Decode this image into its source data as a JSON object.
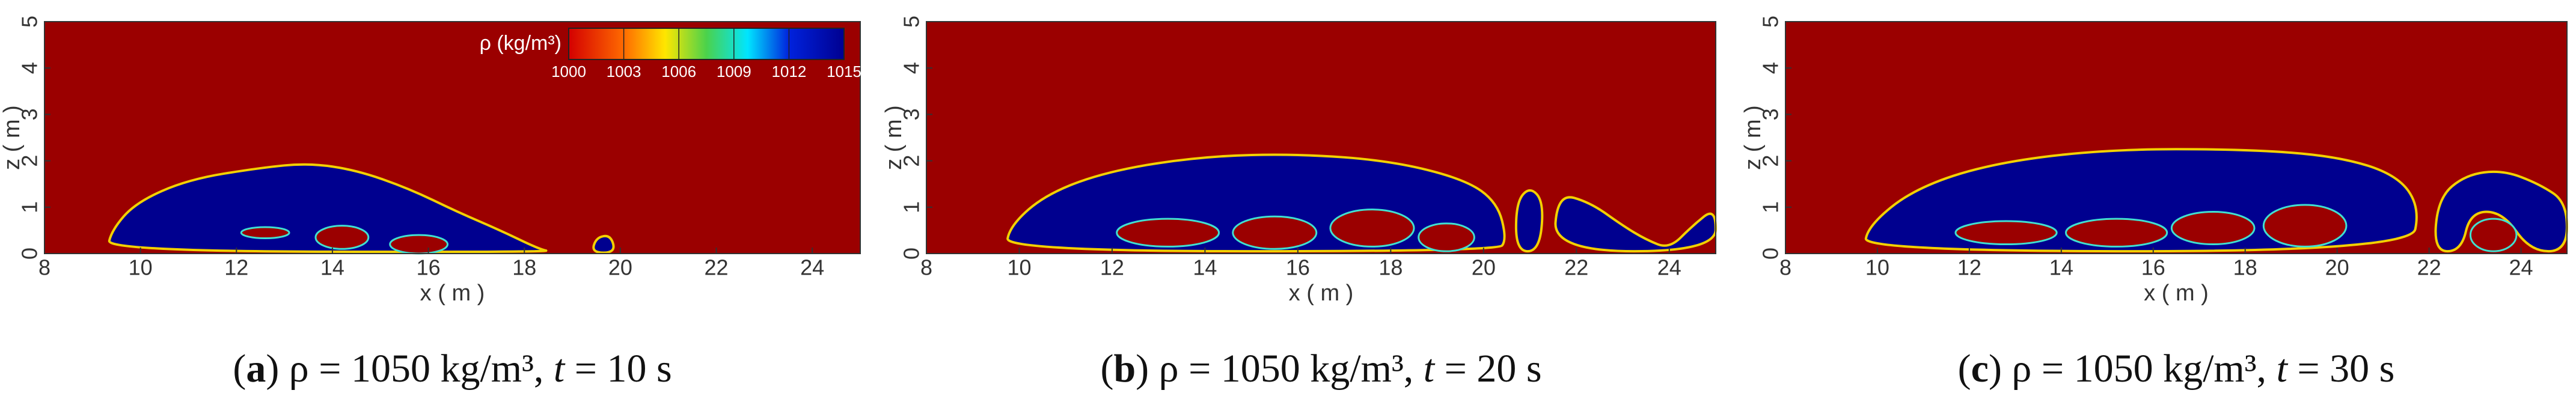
{
  "chart_data": [
    {
      "type": "contour",
      "xlabel": "x ( m )",
      "ylabel": "z ( m )",
      "xlim": [
        8,
        25
      ],
      "ylim": [
        0,
        5
      ],
      "xticks": [
        8,
        10,
        12,
        14,
        16,
        18,
        20,
        22,
        24
      ],
      "yticks": [
        0,
        1,
        2,
        3,
        4,
        5
      ],
      "caption": [
        "(",
        "a",
        ") ρ = 1050 kg/m³, ",
        "t",
        " = 10 s"
      ],
      "colorbar": {
        "label": "ρ (kg/m³)",
        "lim": [
          1000,
          1015
        ],
        "ticks": [
          1000,
          1003,
          1006,
          1009,
          1012,
          1015
        ]
      }
    },
    {
      "type": "contour",
      "xlabel": "x ( m )",
      "ylabel": "z ( m )",
      "xlim": [
        8,
        25
      ],
      "ylim": [
        0,
        5
      ],
      "xticks": [
        8,
        10,
        12,
        14,
        16,
        18,
        20,
        22,
        24
      ],
      "yticks": [
        0,
        1,
        2,
        3,
        4,
        5
      ],
      "caption": [
        "(",
        "b",
        ") ρ = 1050 kg/m³, ",
        "t",
        " = 20 s"
      ]
    },
    {
      "type": "contour",
      "xlabel": "x ( m )",
      "ylabel": "z ( m )",
      "xlim": [
        8,
        25
      ],
      "ylim": [
        0,
        5
      ],
      "xticks": [
        8,
        10,
        12,
        14,
        16,
        18,
        20,
        22,
        24
      ],
      "yticks": [
        0,
        1,
        2,
        3,
        4,
        5
      ],
      "caption": [
        "(",
        "c",
        ") ρ = 1050 kg/m³, ",
        "t",
        " = 30 s"
      ]
    }
  ]
}
